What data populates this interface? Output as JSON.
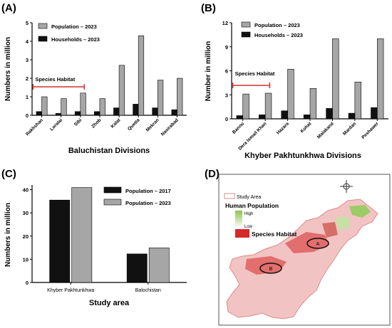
{
  "chart_data": [
    {
      "panel_label": "(A)",
      "type": "bar",
      "categories": [
        "Rakhshan",
        "Loralai",
        "Sibi",
        "Zhob",
        "Kalat",
        "Quetta",
        "Mekran",
        "Nasirabad"
      ],
      "series": [
        {
          "name": "Population – 2023",
          "color": "#a6a6a6",
          "values": [
            1.0,
            0.9,
            1.2,
            0.9,
            2.7,
            4.3,
            1.9,
            2.0
          ]
        },
        {
          "name": "Households – 2023",
          "color": "#111111",
          "values": [
            0.2,
            0.1,
            0.2,
            0.2,
            0.4,
            0.6,
            0.4,
            0.3
          ]
        }
      ],
      "xlabel": "Baluchistan Divisions",
      "ylabel": "Numbers in million",
      "ylim": [
        0,
        5
      ],
      "yticks": [
        0,
        1,
        2,
        3,
        4,
        5
      ],
      "annotation": {
        "text": "Species Habitat",
        "from_category": 0,
        "to_category": 2
      },
      "legend_position": "top-left",
      "grid": false
    },
    {
      "panel_label": "(B)",
      "type": "bar",
      "categories": [
        "Bannu",
        "Dera Ismail Khan",
        "Hazara",
        "Kohat",
        "Malakand",
        "Mardan",
        "Peshawer"
      ],
      "series": [
        {
          "name": "Population – 2023",
          "color": "#a6a6a6",
          "values": [
            3.1,
            3.2,
            6.2,
            3.8,
            10.0,
            4.6,
            10.0
          ]
        },
        {
          "name": "Households – 2023",
          "color": "#111111",
          "values": [
            0.4,
            0.5,
            1.0,
            0.5,
            1.3,
            0.7,
            1.4
          ]
        }
      ],
      "xlabel": "Khyber Pakhtunkhwa Divisions",
      "ylabel": "Number in million",
      "ylim": [
        0,
        12
      ],
      "yticks": [
        0,
        3,
        6,
        9,
        12
      ],
      "annotation": {
        "text": "Species Habitat",
        "from_category": 0,
        "to_category": 1
      },
      "legend_position": "top-left",
      "grid": false
    },
    {
      "panel_label": "(C)",
      "type": "bar",
      "categories": [
        "Khyber Pakhtunkhwa",
        "Balochistan"
      ],
      "series": [
        {
          "name": "Population – 2017",
          "color": "#111111",
          "values": [
            35.5,
            12.3
          ]
        },
        {
          "name": "Population – 2023",
          "color": "#a6a6a6",
          "values": [
            40.9,
            14.9
          ]
        }
      ],
      "xlabel": "Study area",
      "ylabel": "Numbers in million",
      "ylim": [
        0,
        42
      ],
      "yticks": [
        0,
        10,
        20,
        30,
        40
      ],
      "legend_position": "top-right",
      "grid": false
    }
  ],
  "map_panel": {
    "panel_label": "(D)",
    "legend": {
      "study_area": "Study Area",
      "title": "Human Population",
      "high": "High",
      "low": "Low",
      "habitat": "Species Habitat"
    },
    "markers": [
      "A",
      "B"
    ],
    "colors": {
      "study_area": "#e7a6a6",
      "low_pop": "#f4c9c9",
      "high_pop": "#7dbb5a",
      "habitat": "#d62828"
    }
  }
}
